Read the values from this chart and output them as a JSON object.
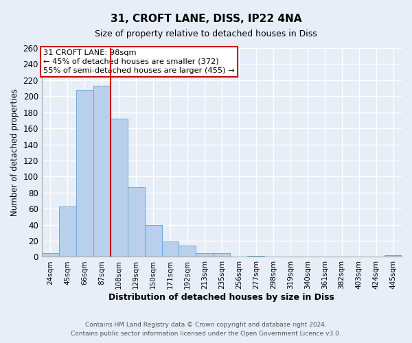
{
  "title": "31, CROFT LANE, DISS, IP22 4NA",
  "subtitle": "Size of property relative to detached houses in Diss",
  "xlabel": "Distribution of detached houses by size in Diss",
  "ylabel": "Number of detached properties",
  "bar_labels": [
    "24sqm",
    "45sqm",
    "66sqm",
    "87sqm",
    "108sqm",
    "129sqm",
    "150sqm",
    "171sqm",
    "192sqm",
    "213sqm",
    "235sqm",
    "256sqm",
    "277sqm",
    "298sqm",
    "319sqm",
    "340sqm",
    "361sqm",
    "382sqm",
    "403sqm",
    "424sqm",
    "445sqm"
  ],
  "bar_values": [
    5,
    63,
    208,
    213,
    172,
    87,
    40,
    19,
    14,
    5,
    5,
    0,
    1,
    0,
    0,
    0,
    0,
    0,
    0,
    0,
    2
  ],
  "bar_color": "#b8d0eb",
  "bar_edge_color": "#6aaad4",
  "vline_color": "#cc0000",
  "annotation_text_line1": "31 CROFT LANE: 98sqm",
  "annotation_text_line2": "← 45% of detached houses are smaller (372)",
  "annotation_text_line3": "55% of semi-detached houses are larger (455) →",
  "annotation_box_color": "#ffffff",
  "annotation_box_edge_color": "#cc0000",
  "ylim": [
    0,
    260
  ],
  "yticks": [
    0,
    20,
    40,
    60,
    80,
    100,
    120,
    140,
    160,
    180,
    200,
    220,
    240,
    260
  ],
  "background_color": "#e8eef8",
  "plot_bg_color": "#e8eef8",
  "grid_color": "#ffffff",
  "footer_line1": "Contains HM Land Registry data © Crown copyright and database right 2024.",
  "footer_line2": "Contains public sector information licensed under the Open Government Licence v3.0."
}
